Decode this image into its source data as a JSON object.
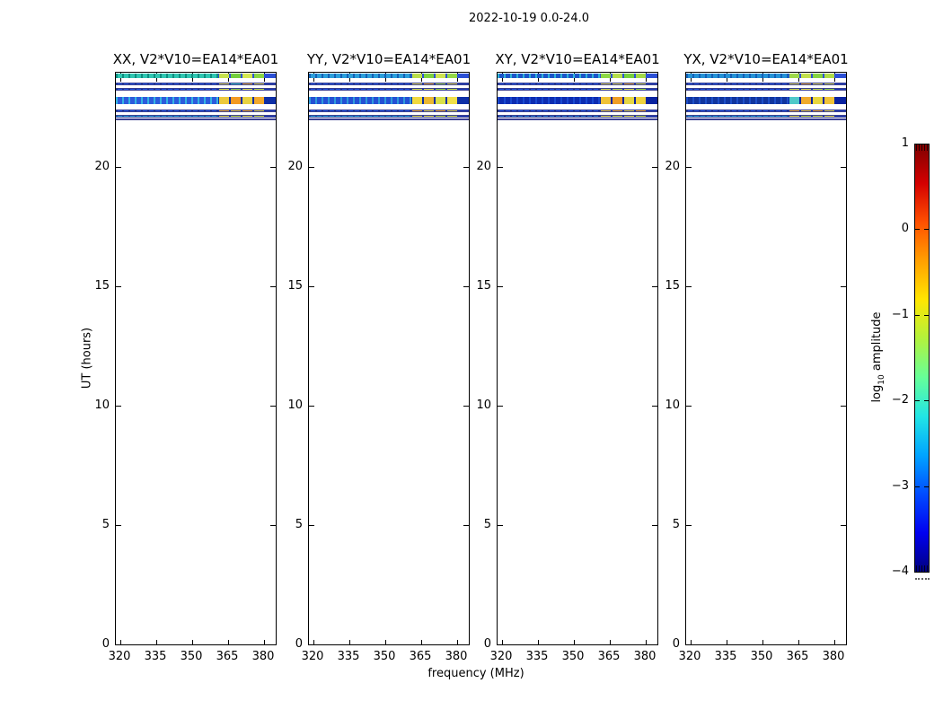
{
  "figure": {
    "suptitle": "2022-10-19 0.0-24.0",
    "xlabel": "frequency (MHz)",
    "ylabel": "UT (hours)",
    "colorbar_label": {
      "pre": "log",
      "sub": "10",
      "post": " amplitude"
    }
  },
  "chart_data": {
    "type": "heatmap",
    "title": "2022-10-19 0.0-24.0",
    "xlabel": "frequency (MHz)",
    "ylabel": "UT (hours)",
    "x_range_mhz": [
      318,
      386
    ],
    "y_range_hours": [
      0,
      24
    ],
    "x_ticks": [
      320,
      335,
      350,
      365,
      380
    ],
    "y_ticks": [
      0,
      5,
      10,
      15,
      20
    ],
    "colormap": "jet",
    "colorbar": {
      "label": "log10 amplitude",
      "range": [
        -4,
        1
      ],
      "ticks": [
        {
          "value": 1,
          "label": "1"
        },
        {
          "value": 0,
          "label": "0"
        },
        {
          "value": -1,
          "label": "−1"
        },
        {
          "value": -2,
          "label": "−2"
        },
        {
          "value": -3,
          "label": "−3"
        },
        {
          "value": -4,
          "label": "−4"
        }
      ],
      "gradient": [
        "#00007f",
        "#0000f0",
        "#004cff",
        "#00a4ff",
        "#22e5e5",
        "#66ff99",
        "#b2f23d",
        "#ffe600",
        "#ffa000",
        "#ff5000",
        "#d40000",
        "#7f0000"
      ]
    },
    "bands_note": "Data only present near UT 22.0-24.0; rest of each panel is empty (white). Right third of each band (about 361-381 MHz) shows high amplitude yellow/orange/green segments; left part is low-amplitude blue/cyan.",
    "panels": [
      {
        "id": "XX",
        "title": "XX, V2*V10=EA14*EA01",
        "rows": [
          {
            "ut": 23.93,
            "dur": 0.21,
            "left": "#2fc7b2",
            "sp": "#0f8e80",
            "segs": [
              "#c6e24e",
              "#73cf3c",
              "#d4e852",
              "#8ad644"
            ],
            "tail": "#2b50d6"
          },
          {
            "ut": 23.55,
            "dur": 0.11,
            "left": "#2356dd",
            "sp": "#16328f",
            "segs": [
              "#e9df52",
              "#45c9c0",
              "#eeab32",
              "#e4d94e"
            ],
            "tail": "#1d3cb4"
          },
          {
            "ut": 23.32,
            "dur": 0.11,
            "left": "#2356dd",
            "sp": "#16328f",
            "segs": [
              "#d9e24e",
              "#9ed94a",
              "#e4e352",
              "#c4de4e"
            ],
            "tail": "#1d3cb4"
          },
          {
            "ut": 22.94,
            "dur": 0.3,
            "left": "#2d5bdc",
            "sp": "#35b5e3",
            "segs": [
              "#ecc93c",
              "#f39a22",
              "#e8d242",
              "#f2a92c"
            ],
            "tail": "#0e2fa6"
          },
          {
            "ut": 22.41,
            "dur": 0.11,
            "left": "#2356dd",
            "sp": "#16328f",
            "segs": [
              "#f2ae2e",
              "#e9cd40",
              "#f0a82a",
              "#dfd34a"
            ],
            "tail": "#1d3cb4"
          },
          {
            "ut": 22.19,
            "dur": 0.11,
            "left": "#2fa5dc",
            "sp": "#1d71b8",
            "segs": [
              "#e2de50",
              "#bfdd4a",
              "#e9e354",
              "#cfe250"
            ],
            "tail": "#1d3cb4"
          },
          {
            "ut": 22.03,
            "dur": 0.07,
            "left": "#63b9e2",
            "sp": "#3f93c9",
            "segs": [
              "#eef0a0",
              "#dcec80",
              "#f0f2a8",
              "#e4ee90"
            ],
            "tail": "#9ccde8"
          }
        ]
      },
      {
        "id": "YY",
        "title": "YY, V2*V10=EA14*EA01",
        "rows": [
          {
            "ut": 23.93,
            "dur": 0.21,
            "left": "#2b9fdb",
            "sp": "#1560b5",
            "segs": [
              "#b9de4a",
              "#7ed23f",
              "#cde452",
              "#93d846"
            ],
            "tail": "#2b50d6"
          },
          {
            "ut": 23.55,
            "dur": 0.11,
            "left": "#2356dd",
            "sp": "#16328f",
            "segs": [
              "#e9df52",
              "#eeab32",
              "#a8d84a",
              "#e4d94e"
            ],
            "tail": "#1d3cb4"
          },
          {
            "ut": 23.32,
            "dur": 0.11,
            "left": "#2356dd",
            "sp": "#16328f",
            "segs": [
              "#d9e24e",
              "#e4e352",
              "#9ed94a",
              "#c4de4e"
            ],
            "tail": "#1d3cb4"
          },
          {
            "ut": 22.94,
            "dur": 0.3,
            "left": "#2450d4",
            "sp": "#2f9bdb",
            "segs": [
              "#f0d93e",
              "#eab832",
              "#d8e04a",
              "#f0e048"
            ],
            "tail": "#0e2fa6"
          },
          {
            "ut": 22.41,
            "dur": 0.11,
            "left": "#2356dd",
            "sp": "#16328f",
            "segs": [
              "#f2ae2e",
              "#e4d94e",
              "#f0a82a",
              "#dfd34a"
            ],
            "tail": "#1d3cb4"
          },
          {
            "ut": 22.19,
            "dur": 0.11,
            "left": "#2da4dc",
            "sp": "#1d71b8",
            "segs": [
              "#e2de50",
              "#e9e354",
              "#bfdd4a",
              "#cfe250"
            ],
            "tail": "#1d3cb4"
          },
          {
            "ut": 22.03,
            "dur": 0.07,
            "left": "#63b9e2",
            "sp": "#3f93c9",
            "segs": [
              "#eef0a0",
              "#f0f2a8",
              "#dcec80",
              "#e4ee90"
            ],
            "tail": "#9ccde8"
          }
        ]
      },
      {
        "id": "XY",
        "title": "XY, V2*V10=EA14*EA01",
        "rows": [
          {
            "ut": 23.93,
            "dur": 0.21,
            "left": "#1b55c9",
            "sp": "#2fb3d8",
            "segs": [
              "#8ed845",
              "#b4de4a",
              "#76d03e",
              "#a2da47"
            ],
            "tail": "#2b50d6"
          },
          {
            "ut": 23.55,
            "dur": 0.11,
            "left": "#2356dd",
            "sp": "#16328f",
            "segs": [
              "#e4d94e",
              "#e9df52",
              "#eeab32",
              "#d8dc4e"
            ],
            "tail": "#1d3cb4"
          },
          {
            "ut": 23.32,
            "dur": 0.11,
            "left": "#2356dd",
            "sp": "#16328f",
            "segs": [
              "#d9e24e",
              "#c4de4e",
              "#e4e352",
              "#9ed94a"
            ],
            "tail": "#1d3cb4"
          },
          {
            "ut": 22.94,
            "dur": 0.3,
            "left": "#0c2cb2",
            "sp": "#1a49d0",
            "segs": [
              "#f0c238",
              "#ef9e24",
              "#e6d644",
              "#efd23e"
            ],
            "tail": "#0a23a0"
          },
          {
            "ut": 22.41,
            "dur": 0.11,
            "left": "#2356dd",
            "sp": "#16328f",
            "segs": [
              "#e9cd40",
              "#f2ae2e",
              "#dfd34a",
              "#f0a82a"
            ],
            "tail": "#1d3cb4"
          },
          {
            "ut": 22.19,
            "dur": 0.11,
            "left": "#2b7fd0",
            "sp": "#16328f",
            "segs": [
              "#e2de50",
              "#cfe250",
              "#e9e354",
              "#bfdd4a"
            ],
            "tail": "#1d3cb4"
          },
          {
            "ut": 22.03,
            "dur": 0.07,
            "left": "#63b9e2",
            "sp": "#3f93c9",
            "segs": [
              "#eef0a0",
              "#e4ee90",
              "#f0f2a8",
              "#dcec80"
            ],
            "tail": "#9ccde8"
          }
        ]
      },
      {
        "id": "YX",
        "title": "YX, V2*V10=EA14*EA01",
        "rows": [
          {
            "ut": 23.93,
            "dur": 0.21,
            "left": "#2492d6",
            "sp": "#1360b8",
            "segs": [
              "#9ed94a",
              "#c2e04c",
              "#86d442",
              "#aedc48"
            ],
            "tail": "#2b50d6"
          },
          {
            "ut": 23.55,
            "dur": 0.11,
            "left": "#2356dd",
            "sp": "#16328f",
            "segs": [
              "#e4d94e",
              "#eeab32",
              "#e9df52",
              "#d8dc4e"
            ],
            "tail": "#1d3cb4"
          },
          {
            "ut": 23.32,
            "dur": 0.11,
            "left": "#2356dd",
            "sp": "#16328f",
            "segs": [
              "#d9e24e",
              "#e4e352",
              "#c4de4e",
              "#9ed94a"
            ],
            "tail": "#1d3cb4"
          },
          {
            "ut": 22.94,
            "dur": 0.3,
            "left": "#11359f",
            "sp": "#1f50c8",
            "segs": [
              "#4fc9c9",
              "#f0ab2c",
              "#e8d63f",
              "#efc238"
            ],
            "tail": "#0a23a0"
          },
          {
            "ut": 22.41,
            "dur": 0.11,
            "left": "#2356dd",
            "sp": "#16328f",
            "segs": [
              "#f2ae2e",
              "#e9cd40",
              "#f0a82a",
              "#dfd34a"
            ],
            "tail": "#1d3cb4"
          },
          {
            "ut": 22.19,
            "dur": 0.11,
            "left": "#2da4dc",
            "sp": "#1d71b8",
            "segs": [
              "#e2de50",
              "#bfdd4a",
              "#cfe250",
              "#e9e354"
            ],
            "tail": "#1d3cb4"
          },
          {
            "ut": 22.03,
            "dur": 0.07,
            "left": "#63b9e2",
            "sp": "#3f93c9",
            "segs": [
              "#eef0a0",
              "#dcec80",
              "#e4ee90",
              "#f0f2a8"
            ],
            "tail": "#9ccde8"
          }
        ]
      }
    ]
  }
}
